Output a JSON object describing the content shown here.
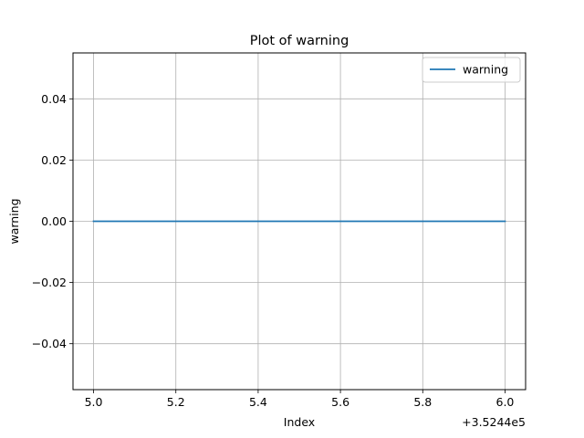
{
  "chart_data": {
    "type": "line",
    "title": "Plot of warning",
    "xlabel": "Index",
    "ylabel": "warning",
    "x_offset_label": "+3.5244e5",
    "x": [
      352445,
      352446
    ],
    "series": [
      {
        "name": "warning",
        "values": [
          0.0,
          0.0
        ],
        "color": "#1f77b4"
      }
    ],
    "xlim": [
      352444.95,
      352446.05
    ],
    "ylim": [
      -0.055,
      0.055
    ],
    "xticks": [
      352445.0,
      352445.2,
      352445.4,
      352445.6,
      352445.8,
      352446.0
    ],
    "xtick_labels": [
      "5.0",
      "5.2",
      "5.4",
      "5.6",
      "5.8",
      "6.0"
    ],
    "yticks": [
      -0.04,
      -0.02,
      0.0,
      0.02,
      0.04
    ],
    "ytick_labels": [
      "−0.04",
      "−0.02",
      "0.00",
      "0.02",
      "0.04"
    ],
    "grid": true,
    "legend_position": "upper right"
  }
}
